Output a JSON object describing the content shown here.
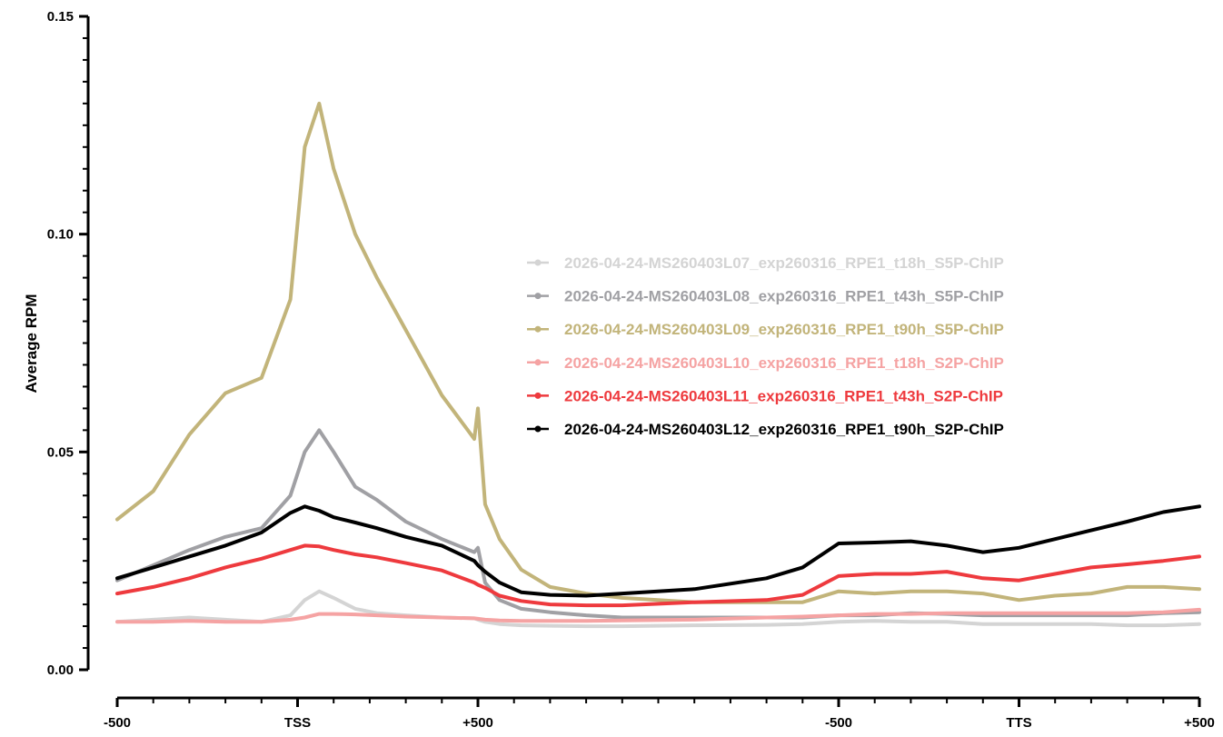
{
  "chart_data": {
    "type": "line",
    "title": "",
    "xlabel": "",
    "ylabel": "Average RPM",
    "ylim": [
      0,
      0.15
    ],
    "y_ticks": [
      "0.00",
      "0.05",
      "0.10",
      "0.15"
    ],
    "x_range": [
      0,
      150
    ],
    "x_ticks": [
      {
        "x": 0,
        "label": "-500"
      },
      {
        "x": 25,
        "label": "TSS"
      },
      {
        "x": 50,
        "label": "+500"
      },
      {
        "x": 100,
        "label": "-500"
      },
      {
        "x": 125,
        "label": "TTS"
      },
      {
        "x": 150,
        "label": "+500"
      }
    ],
    "grid": false,
    "legend_position": "right",
    "x": [
      0,
      5,
      10,
      15,
      20,
      24,
      26,
      28,
      30,
      33,
      36,
      40,
      45,
      49.5,
      50,
      51,
      53,
      56,
      60,
      65,
      70,
      80,
      90,
      95,
      100,
      105,
      110,
      115,
      120,
      125,
      130,
      135,
      140,
      145,
      150
    ],
    "series": [
      {
        "name": "2026-04-24-MS260403L07_exp260316_RPE1_t18h_S5P-ChIP",
        "color": "#d4d4d4",
        "values": [
          0.011,
          0.0115,
          0.012,
          0.0115,
          0.011,
          0.0125,
          0.016,
          0.018,
          0.0165,
          0.014,
          0.013,
          0.0125,
          0.012,
          0.0118,
          0.0115,
          0.011,
          0.0105,
          0.0102,
          0.0101,
          0.01,
          0.01,
          0.0102,
          0.0103,
          0.0105,
          0.011,
          0.0112,
          0.011,
          0.011,
          0.0105,
          0.0105,
          0.0105,
          0.0105,
          0.0102,
          0.0102,
          0.0105
        ]
      },
      {
        "name": "2026-04-24-MS260403L08_exp260316_RPE1_t43h_S5P-ChIP",
        "color": "#a0a0a4",
        "values": [
          0.0205,
          0.024,
          0.0275,
          0.0305,
          0.0325,
          0.04,
          0.05,
          0.055,
          0.05,
          0.042,
          0.039,
          0.034,
          0.03,
          0.027,
          0.028,
          0.02,
          0.016,
          0.014,
          0.0132,
          0.0125,
          0.012,
          0.012,
          0.012,
          0.012,
          0.0125,
          0.0125,
          0.013,
          0.0128,
          0.0125,
          0.0125,
          0.0125,
          0.0125,
          0.0125,
          0.013,
          0.0132
        ]
      },
      {
        "name": "2026-04-24-MS260403L09_exp260316_RPE1_t90h_S5P-ChIP",
        "color": "#c2b47a",
        "values": [
          0.0345,
          0.041,
          0.054,
          0.0635,
          0.067,
          0.085,
          0.12,
          0.13,
          0.115,
          0.1,
          0.09,
          0.078,
          0.063,
          0.053,
          0.06,
          0.038,
          0.03,
          0.023,
          0.019,
          0.0175,
          0.0165,
          0.0155,
          0.0155,
          0.0155,
          0.018,
          0.0175,
          0.018,
          0.018,
          0.0175,
          0.016,
          0.017,
          0.0175,
          0.019,
          0.019,
          0.0185
        ]
      },
      {
        "name": "2026-04-24-MS260403L10_exp260316_RPE1_t18h_S2P-ChIP",
        "color": "#f5a3a3",
        "values": [
          0.011,
          0.011,
          0.0112,
          0.011,
          0.011,
          0.0115,
          0.012,
          0.0128,
          0.0128,
          0.0127,
          0.0125,
          0.0122,
          0.012,
          0.0118,
          0.0117,
          0.0115,
          0.0113,
          0.0112,
          0.0112,
          0.0112,
          0.0113,
          0.0115,
          0.012,
          0.0122,
          0.0125,
          0.0128,
          0.0128,
          0.013,
          0.013,
          0.013,
          0.013,
          0.013,
          0.013,
          0.0132,
          0.0138
        ]
      },
      {
        "name": "2026-04-24-MS260403L11_exp260316_RPE1_t43h_S2P-ChIP",
        "color": "#ee3a3e",
        "values": [
          0.0175,
          0.019,
          0.021,
          0.0235,
          0.0255,
          0.0275,
          0.0285,
          0.0283,
          0.0275,
          0.0265,
          0.0258,
          0.0245,
          0.0228,
          0.02,
          0.0195,
          0.0188,
          0.017,
          0.0158,
          0.015,
          0.0148,
          0.0148,
          0.0155,
          0.016,
          0.0172,
          0.0215,
          0.022,
          0.022,
          0.0225,
          0.021,
          0.0205,
          0.022,
          0.0235,
          0.0242,
          0.025,
          0.026
        ]
      },
      {
        "name": "2026-04-24-MS260403L12_exp260316_RPE1_t90h_S2P-ChIP",
        "color": "#000000",
        "values": [
          0.021,
          0.0235,
          0.026,
          0.0285,
          0.0315,
          0.036,
          0.0375,
          0.0365,
          0.035,
          0.0338,
          0.0325,
          0.0305,
          0.0285,
          0.025,
          0.024,
          0.0225,
          0.02,
          0.0178,
          0.0172,
          0.017,
          0.0175,
          0.0185,
          0.021,
          0.0235,
          0.029,
          0.0292,
          0.0295,
          0.0285,
          0.027,
          0.028,
          0.03,
          0.032,
          0.034,
          0.0362,
          0.0375
        ]
      }
    ]
  }
}
